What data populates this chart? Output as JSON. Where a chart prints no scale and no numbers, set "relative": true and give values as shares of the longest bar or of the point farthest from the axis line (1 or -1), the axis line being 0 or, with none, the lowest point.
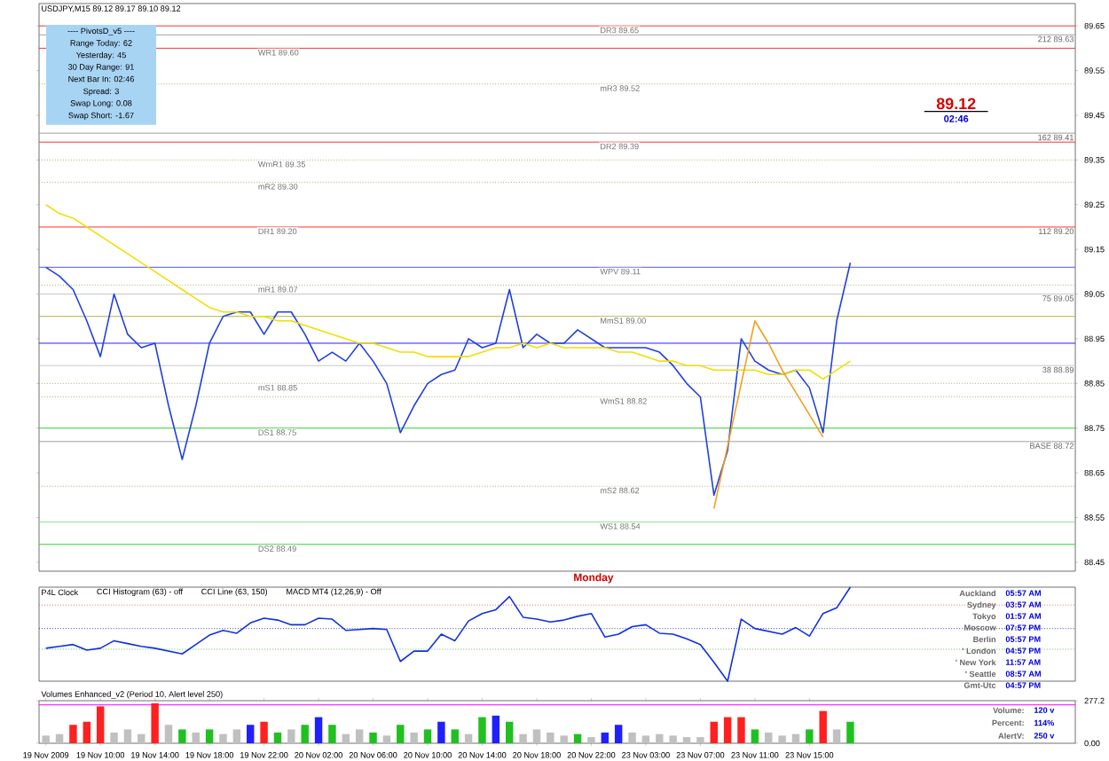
{
  "chart_data": [
    {
      "type": "line",
      "title": "USDJPY,M15 89.12 89.17 89.10 89.12",
      "ylim": [
        88.43,
        89.7
      ],
      "yticks": [
        88.45,
        88.55,
        88.65,
        88.75,
        88.85,
        88.95,
        89.05,
        89.15,
        89.25,
        89.35,
        89.45,
        89.55,
        89.65
      ],
      "tick_labels": "y",
      "categories": [
        null,
        null,
        null,
        null,
        null,
        null,
        null,
        null,
        null,
        null,
        null,
        null,
        null,
        null,
        null,
        null,
        null,
        null,
        null,
        null,
        null,
        null,
        null,
        null,
        null,
        null,
        null,
        null,
        null,
        null,
        null,
        null,
        null,
        null,
        null,
        null,
        null,
        null,
        null,
        null,
        null,
        null,
        null,
        null,
        null,
        null,
        null,
        null,
        null,
        null,
        null,
        null,
        null,
        null,
        null,
        null,
        null,
        null,
        null,
        null,
        null,
        null,
        null,
        null,
        null,
        null,
        null,
        null,
        null,
        null,
        null,
        null,
        null,
        null,
        null,
        null
      ],
      "series": [
        {
          "color": "#2040e0",
          "values": [
            89.11,
            89.09,
            89.06,
            88.99,
            88.91,
            89.05,
            88.96,
            88.93,
            88.94,
            88.8,
            88.68,
            88.8,
            88.94,
            89.0,
            89.01,
            89.01,
            88.96,
            89.01,
            89.01,
            88.96,
            88.9,
            88.92,
            88.9,
            88.94,
            88.9,
            88.85,
            88.74,
            88.8,
            88.85,
            88.87,
            88.88,
            88.95,
            88.93,
            88.94,
            89.06,
            88.93,
            88.96,
            88.94,
            88.94,
            88.97,
            88.95,
            88.93,
            88.93,
            88.93,
            88.93,
            88.92,
            88.89,
            88.85,
            88.82,
            88.6,
            88.7,
            88.95,
            88.9,
            88.88,
            88.87,
            88.88,
            88.84,
            88.74,
            88.99,
            89.12,
            null,
            null,
            null,
            null,
            null,
            null,
            null,
            null,
            null,
            null,
            null,
            null,
            null,
            null,
            null,
            null
          ]
        },
        {
          "color": "#f0e000",
          "values": [
            89.25,
            89.23,
            89.22,
            89.2,
            89.18,
            89.16,
            89.14,
            89.12,
            89.1,
            89.08,
            89.06,
            89.04,
            89.02,
            89.01,
            89.01,
            89.0,
            89.0,
            88.99,
            88.99,
            88.98,
            88.97,
            88.96,
            88.95,
            88.94,
            88.94,
            88.93,
            88.92,
            88.92,
            88.91,
            88.91,
            88.91,
            88.91,
            88.92,
            88.93,
            88.93,
            88.94,
            88.93,
            88.94,
            88.93,
            88.93,
            88.93,
            88.93,
            88.92,
            88.92,
            88.91,
            88.9,
            88.9,
            88.89,
            88.89,
            88.88,
            88.88,
            88.88,
            88.88,
            88.87,
            88.87,
            88.88,
            88.88,
            88.86,
            88.88,
            88.9,
            null,
            null,
            null,
            null,
            null,
            null,
            null,
            null,
            null,
            null,
            null,
            null,
            null,
            null,
            null,
            null
          ]
        },
        {
          "color": "#f0a020",
          "values": [
            null,
            null,
            null,
            null,
            null,
            null,
            null,
            null,
            null,
            null,
            null,
            null,
            null,
            null,
            null,
            null,
            null,
            null,
            null,
            null,
            null,
            null,
            null,
            null,
            null,
            null,
            null,
            null,
            null,
            null,
            null,
            null,
            null,
            null,
            null,
            null,
            null,
            null,
            null,
            null,
            null,
            null,
            null,
            null,
            null,
            null,
            null,
            null,
            null,
            88.57,
            88.71,
            88.85,
            88.99,
            88.94,
            88.88,
            88.83,
            88.78,
            88.73,
            null,
            null,
            null,
            null,
            null,
            null,
            null,
            null,
            null,
            null,
            null,
            null,
            null,
            null,
            null,
            null,
            null,
            null
          ]
        }
      ],
      "ref_lines": [
        {
          "axis": "y",
          "value": 89.65,
          "label": "DR3 89.65",
          "color": "#ff3030",
          "line_style": "solid"
        },
        {
          "axis": "y",
          "value": 89.6,
          "label": "WR1 89.60",
          "color": "#ff3030",
          "line_style": "solid"
        },
        {
          "axis": "y",
          "value": 89.52,
          "label": "mR3 89.52",
          "color": "#b0b060",
          "line_style": "dotted"
        },
        {
          "axis": "y",
          "value": 89.35,
          "label": "WmR1 89.35",
          "color": "#b0b060",
          "line_style": "dotted"
        },
        {
          "axis": "y",
          "value": 89.39,
          "label": "DR2 89.39",
          "color": "#ff3030",
          "line_style": "solid"
        },
        {
          "axis": "y",
          "value": 88.94,
          "color": "#2020ff",
          "line_style": "solid"
        },
        {
          "axis": "y",
          "value": 89.3,
          "label": "mR2 89.30",
          "color": "#b0b060",
          "line_style": "dotted"
        },
        {
          "axis": "y",
          "value": 89.11,
          "label": "WPV 89.11",
          "color": "#5050ff",
          "line_style": "solid"
        },
        {
          "axis": "y",
          "value": 89.2,
          "label": "DR1 89.20",
          "color": "#ff3030",
          "line_style": "solid"
        },
        {
          "axis": "y",
          "value": 89.0,
          "label": "MmS1 89.00",
          "color": "#b0b050",
          "line_style": "solid"
        },
        {
          "axis": "y",
          "value": 89.07,
          "label": "mR1 89.07",
          "color": "#b0b060",
          "line_style": "dotted"
        },
        {
          "axis": "y",
          "value": 88.82,
          "label": "WmS1 88.82",
          "color": "#b0b060",
          "line_style": "dotted"
        },
        {
          "axis": "y",
          "value": 88.85,
          "label": "mS1 88.85",
          "color": "#b0b060",
          "line_style": "dotted"
        },
        {
          "axis": "y",
          "value": 88.54,
          "label": "WS1 88.54",
          "color": "#90e090",
          "line_style": "solid"
        },
        {
          "axis": "y",
          "value": 88.75,
          "label": "DS1 88.75",
          "color": "#30d030",
          "line_style": "solid"
        },
        {
          "axis": "y",
          "value": 88.62,
          "label": "mS2 88.62",
          "color": "#b0b060",
          "line_style": "dotted"
        },
        {
          "axis": "y",
          "value": 88.49,
          "label": "DS2 88.49",
          "color": "#30d030",
          "line_style": "solid"
        },
        {
          "axis": "y",
          "value": 89.63,
          "color": "#a0a0a0",
          "line_style": "solid"
        },
        {
          "axis": "y",
          "value": 89.41,
          "color": "#a0a0a0",
          "line_style": "solid"
        },
        {
          "axis": "y",
          "value": 89.05,
          "color": "#c8c8c8",
          "line_style": "solid"
        },
        {
          "axis": "y",
          "value": 88.89,
          "color": "#c8c8c8",
          "line_style": "solid"
        },
        {
          "axis": "y",
          "value": 88.72,
          "color": "#a0a0a0",
          "line_style": "solid"
        }
      ],
      "annotations": [
        "89.12",
        "02:46",
        {
          "text": "Monday"
        },
        {
          "text": "212 89.63",
          "y": 89.63
        },
        {
          "text": "162 89.41",
          "y": 89.41
        },
        {
          "text": "112 89.20",
          "y": 89.2
        },
        {
          "text": "75 89.05",
          "y": 89.05
        },
        {
          "text": "38 88.89",
          "y": 88.89
        },
        {
          "text": "BASE 88.72",
          "y": 88.72
        }
      ]
    },
    {
      "type": "other",
      "annotations": [
        "---- PivotsD_v5 ----",
        "Range Today: 62",
        "Yesterday: 45",
        "30 Day Range: 91",
        "Next Bar In: 02:46",
        "Spread: 3",
        "Swap Long: 0.08",
        "Swap Short: -1.67"
      ]
    },
    {
      "type": "line",
      "relative": true,
      "tick_labels": false,
      "categories": [
        null,
        null,
        null,
        null,
        null,
        null,
        null,
        null,
        null,
        null,
        null,
        null,
        null,
        null,
        null,
        null,
        null,
        null,
        null,
        null,
        null,
        null,
        null,
        null,
        null,
        null,
        null,
        null,
        null,
        null,
        null,
        null,
        null,
        null,
        null,
        null,
        null,
        null,
        null,
        null,
        null,
        null,
        null,
        null,
        null,
        null,
        null,
        null,
        null,
        null,
        null,
        null,
        null,
        null,
        null,
        null,
        null,
        null,
        null,
        null,
        null,
        null,
        null,
        null,
        null,
        null,
        null,
        null,
        null,
        null,
        null,
        null,
        null,
        null,
        null,
        null
      ],
      "annotations": [
        "P4L Clock",
        "CCI Histogram (63) - off",
        "CCI Line (63, 150)",
        "MACD MT4 (12,26,9) - Off"
      ],
      "series": [
        {
          "color": "#1030e0",
          "values": [
            0.35,
            0.37,
            0.39,
            0.33,
            0.35,
            0.43,
            0.4,
            0.37,
            0.35,
            0.32,
            0.29,
            0.39,
            0.49,
            0.54,
            0.51,
            0.62,
            0.67,
            0.65,
            0.6,
            0.6,
            0.67,
            0.66,
            0.54,
            0.55,
            0.56,
            0.55,
            0.21,
            0.32,
            0.32,
            0.5,
            0.43,
            0.64,
            0.72,
            0.76,
            0.9,
            0.68,
            0.66,
            0.63,
            0.65,
            0.69,
            0.72,
            0.47,
            0.5,
            0.58,
            0.6,
            0.51,
            0.5,
            0.45,
            0.39,
            0.2,
            0.0,
            0.66,
            0.56,
            0.53,
            0.5,
            0.57,
            0.48,
            0.72,
            0.78,
            1.0,
            null,
            null,
            null,
            null,
            null,
            null,
            null,
            null,
            null,
            null,
            null,
            null,
            null,
            null,
            null,
            null
          ]
        }
      ],
      "ref_lines": [
        {
          "axis": "y",
          "value": 0.81,
          "color": "#ff6060",
          "line_style": "dotted"
        },
        {
          "axis": "y",
          "value": 0.56,
          "color": "#4040c0",
          "line_style": "dotted"
        },
        {
          "axis": "y",
          "value": 0.34,
          "color": "#60c060",
          "line_style": "dotted"
        }
      ]
    },
    {
      "type": "other",
      "annotations": [
        "Auckland",
        "05:57 AM",
        "Sydney",
        "03:57 AM",
        "Tokyo",
        "01:57 AM",
        "Moscow",
        "07:57 PM",
        "Berlin",
        "05:57 PM",
        "' London",
        "04:57 PM",
        "' New York",
        "11:57 AM",
        "' Seattle",
        "08:57 AM",
        "Gmt-Utc",
        "04:57 PM"
      ]
    },
    {
      "type": "bar",
      "title": "Volumes Enhanced_v2 (Period 10, Alert level 250)",
      "ylim": [
        0,
        277.2
      ],
      "yticks": [
        {
          "value": 0,
          "label": "0.00"
        },
        277.2
      ],
      "categories": [
        "19 Nov 2009",
        null,
        null,
        null,
        "19 Nov 10:00",
        null,
        null,
        null,
        "19 Nov 14:00",
        null,
        null,
        null,
        "19 Nov 18:00",
        null,
        null,
        null,
        "19 Nov 22:00",
        null,
        null,
        null,
        "20 Nov 02:00",
        null,
        null,
        null,
        "20 Nov 06:00",
        null,
        null,
        null,
        "20 Nov 10:00",
        null,
        null,
        null,
        "20 Nov 14:00",
        null,
        null,
        null,
        "20 Nov 18:00",
        null,
        null,
        null,
        "20 Nov 22:00",
        null,
        null,
        null,
        "23 Nov 03:00",
        null,
        null,
        null,
        "23 Nov 07:00",
        null,
        null,
        null,
        "23 Nov 11:00",
        null,
        null,
        null,
        "23 Nov 15:00",
        null,
        null,
        null,
        null,
        null,
        null,
        null,
        null,
        null,
        null,
        null,
        null,
        null,
        null,
        null,
        null,
        null,
        null,
        null
      ],
      "values": [
        50,
        60,
        120,
        140,
        240,
        70,
        90,
        60,
        260,
        120,
        90,
        70,
        90,
        60,
        90,
        120,
        140,
        70,
        90,
        120,
        170,
        120,
        60,
        90,
        70,
        50,
        120,
        70,
        90,
        140,
        90,
        60,
        170,
        180,
        140,
        60,
        90,
        70,
        50,
        60,
        40,
        70,
        120,
        70,
        50,
        60,
        50,
        40,
        40,
        140,
        170,
        170,
        90,
        70,
        50,
        60,
        90,
        210,
        90,
        140,
        null,
        null,
        null,
        null,
        null,
        null,
        null,
        null,
        null,
        null,
        null,
        null,
        null,
        null,
        null,
        null
      ],
      "colors": [
        "#c0c0c0",
        "#c0c0c0",
        "#ff2020",
        "#ff2020",
        "#ff2020",
        "#c0c0c0",
        "#c0c0c0",
        "#c0c0c0",
        "#ff2020",
        "#c0c0c0",
        "#20c020",
        "#c0c0c0",
        "#20c020",
        "#c0c0c0",
        "#c0c0c0",
        "#2020ff",
        "#ff2020",
        "#20c020",
        "#c0c0c0",
        "#20c020",
        "#2020ff",
        "#20c020",
        "#c0c0c0",
        "#c0c0c0",
        "#20c020",
        "#c0c0c0",
        "#20c020",
        "#c0c0c0",
        "#20c020",
        "#2020ff",
        "#20c020",
        "#c0c0c0",
        "#20c020",
        "#2020ff",
        "#20c020",
        "#c0c0c0",
        "#c0c0c0",
        "#c0c0c0",
        "#c0c0c0",
        "#20c020",
        "#c0c0c0",
        "#2020ff",
        "#2020ff",
        "#c0c0c0",
        "#c0c0c0",
        "#c0c0c0",
        "#c0c0c0",
        "#c0c0c0",
        "#c0c0c0",
        "#ff2020",
        "#ff2020",
        "#ff2020",
        "#20c020",
        "#c0c0c0",
        "#c0c0c0",
        "#c0c0c0",
        "#20c020",
        "#ff2020",
        "#c0c0c0",
        "#20c020",
        "#c0c0c0",
        "#c0c0c0",
        "#c0c0c0",
        "#c0c0c0",
        "#c0c0c0",
        "#c0c0c0",
        "#c0c0c0",
        "#c0c0c0",
        "#c0c0c0",
        "#c0c0c0",
        "#c0c0c0",
        "#c0c0c0",
        "#c0c0c0",
        "#c0c0c0",
        "#c0c0c0",
        "#c0c0c0"
      ],
      "ref_lines": [
        {
          "axis": "y",
          "value": 250,
          "color": "#ff00ff",
          "line_style": "solid"
        }
      ]
    },
    {
      "type": "other",
      "annotations": [
        "Volume:",
        "120 v",
        "Percent:",
        "114%",
        "AlertV:",
        "250 v"
      ]
    }
  ]
}
